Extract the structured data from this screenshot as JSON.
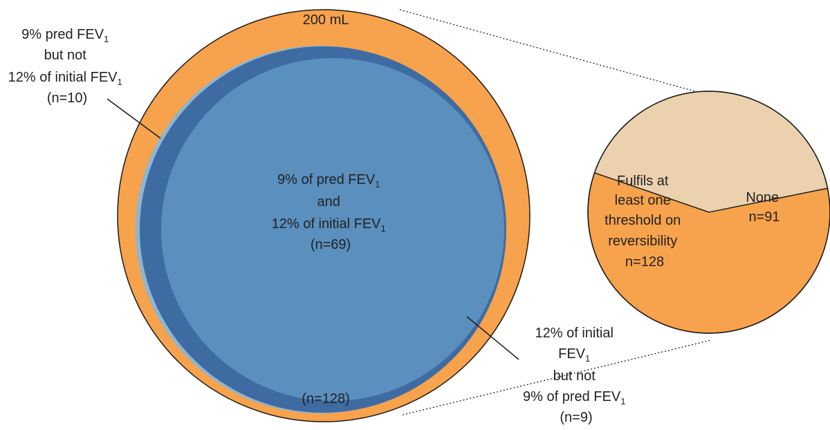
{
  "colors": {
    "orange": "#F7A24C",
    "blue_main": "#5A8FBE",
    "blue_dark": "#3F6BA3",
    "blue_light": "#8DB6D2",
    "beige": "#EBD1AE",
    "outline": "#1A1A1A",
    "text": "#222222"
  },
  "outer_circle": {
    "top_label": "200 mL",
    "bottom_label": "(n=128)"
  },
  "center_label": {
    "line1_a": "9% of pred FEV",
    "line1_sub": "1",
    "line2": "and",
    "line3_a": "12% of initial FEV",
    "line3_sub": "1",
    "line4": "(n=69)"
  },
  "left_label": {
    "line1_a": "9% pred FEV",
    "line1_sub": "1",
    "line2": "but not",
    "line3_a": "12% of initial FEV",
    "line3_sub": "1",
    "line4": "(n=10)"
  },
  "bottom_right_label": {
    "line1": "12% of initial",
    "line2_a": "FEV",
    "line2_sub": "1",
    "line3": "but not",
    "line4_a": "9% of pred FEV",
    "line4_sub": "1",
    "line5": "(n=9)"
  },
  "pie_chart": {
    "slices": [
      {
        "name": "Fulfils at least one threshold on reversibility",
        "value": 128
      },
      {
        "name": "None",
        "value": 91
      }
    ],
    "fulfils_label": {
      "line1": "Fulfils at",
      "line2": "least one",
      "line3": "threshold on",
      "line4": "reversibility",
      "line5": "n=128"
    },
    "none_label": {
      "line1": "None",
      "line2": "n=91"
    }
  }
}
